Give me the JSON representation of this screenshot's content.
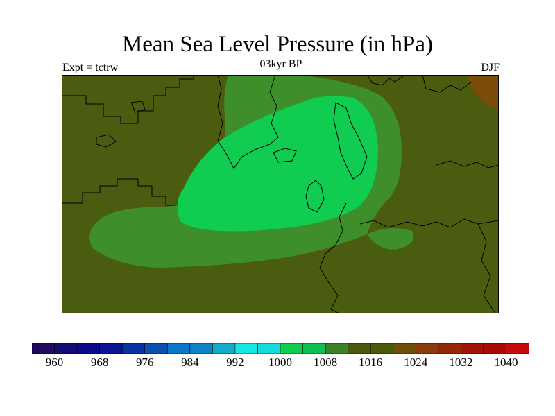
{
  "title": "Mean Sea Level Pressure (in hPa)",
  "experiment_label": "Expt = tctrw",
  "time_label": "03kyr BP",
  "season_label": "DJF",
  "colors": {
    "background_1016": "#4a5c10",
    "band_1008": "#3e8e2c",
    "core_1000": "#10cc50",
    "high_1024": "#7a4c08",
    "coastline": "#000000"
  },
  "colorbar": {
    "colors": [
      "#1e0a60",
      "#140a78",
      "#0a0a88",
      "#0a1496",
      "#0a32a0",
      "#0a50b0",
      "#0a78c8",
      "#1082c8",
      "#14aac8",
      "#14e6e6",
      "#14dcdc",
      "#10cc50",
      "#10c050",
      "#3c8228",
      "#4a5a0a",
      "#4a5a0a",
      "#6e5008",
      "#8c3c08",
      "#96280a",
      "#a01408",
      "#a80a08",
      "#c80a0a"
    ],
    "labels": [
      "960",
      "968",
      "976",
      "984",
      "992",
      "1000",
      "1008",
      "1016",
      "1024",
      "1032",
      "1040"
    ]
  }
}
